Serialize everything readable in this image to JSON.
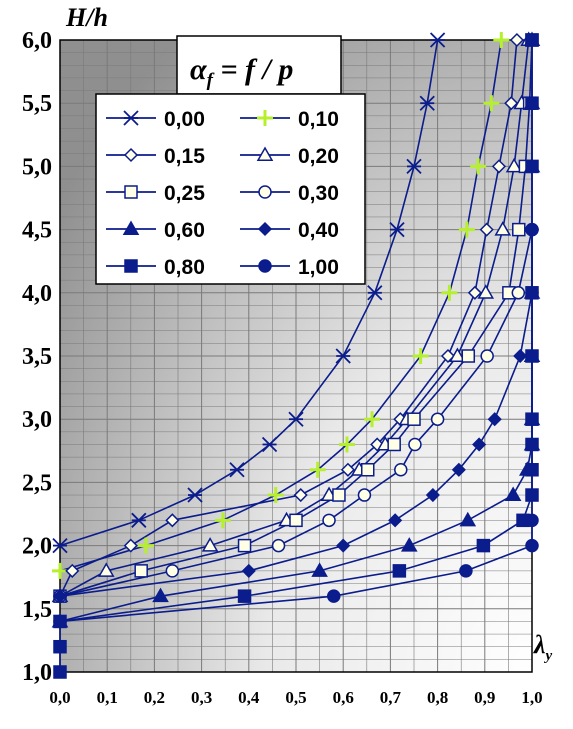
{
  "chart_data": {
    "type": "line",
    "title": "",
    "ylabel": "H/h",
    "xlabel": "λy",
    "xlim": [
      0,
      1
    ],
    "ylim": [
      1,
      6
    ],
    "x_ticks": [
      "0,0",
      "0,1",
      "0,2",
      "0,3",
      "0,4",
      "0,5",
      "0,6",
      "0,7",
      "0,8",
      "0,9",
      "1,0"
    ],
    "y_ticks": [
      "1,0",
      "1,5",
      "2,0",
      "2,5",
      "3,0",
      "3,5",
      "4,0",
      "4,5",
      "5,0",
      "5,5",
      "6,0"
    ],
    "grid": true,
    "legend": {
      "placement": "top-left",
      "title": "αf = f / p"
    },
    "series": [
      {
        "name": "0,00",
        "marker": "star",
        "points": [
          [
            0,
            2.0
          ],
          [
            0.167,
            2.2
          ],
          [
            0.286,
            2.4
          ],
          [
            0.375,
            2.6
          ],
          [
            0.444,
            2.8
          ],
          [
            0.5,
            3.0
          ],
          [
            0.6,
            3.5
          ],
          [
            0.667,
            4.0
          ],
          [
            0.714,
            4.5
          ],
          [
            0.75,
            5.0
          ],
          [
            0.778,
            5.5
          ],
          [
            0.8,
            6.0
          ]
        ]
      },
      {
        "name": "0,10",
        "marker": "plus",
        "points": [
          [
            0,
            1.8
          ],
          [
            0.182,
            2.0
          ],
          [
            0.345,
            2.2
          ],
          [
            0.457,
            2.4
          ],
          [
            0.546,
            2.6
          ],
          [
            0.608,
            2.8
          ],
          [
            0.661,
            3.0
          ],
          [
            0.764,
            3.5
          ],
          [
            0.825,
            4.0
          ],
          [
            0.862,
            4.5
          ],
          [
            0.886,
            5.0
          ],
          [
            0.914,
            5.5
          ],
          [
            0.935,
            6.0
          ]
        ]
      },
      {
        "name": "0,15",
        "marker": "diamond",
        "points": [
          [
            0,
            1.6
          ],
          [
            0.026,
            1.8
          ],
          [
            0.15,
            2.0
          ],
          [
            0.238,
            2.2
          ],
          [
            0.51,
            2.4
          ],
          [
            0.61,
            2.6
          ],
          [
            0.672,
            2.8
          ],
          [
            0.721,
            3.0
          ],
          [
            0.822,
            3.5
          ],
          [
            0.879,
            4.0
          ],
          [
            0.904,
            4.5
          ],
          [
            0.93,
            5.0
          ],
          [
            0.956,
            5.5
          ],
          [
            0.968,
            6.0
          ]
        ]
      },
      {
        "name": "0,20",
        "marker": "triangle-open",
        "points": [
          [
            0,
            1.6
          ],
          [
            0.098,
            1.8
          ],
          [
            0.318,
            2.0
          ],
          [
            0.48,
            2.2
          ],
          [
            0.57,
            2.4
          ],
          [
            0.634,
            2.6
          ],
          [
            0.689,
            2.8
          ],
          [
            0.735,
            3.0
          ],
          [
            0.842,
            3.5
          ],
          [
            0.902,
            4.0
          ],
          [
            0.938,
            4.5
          ],
          [
            0.962,
            5.0
          ],
          [
            0.978,
            5.5
          ],
          [
            0.993,
            6.0
          ]
        ]
      },
      {
        "name": "0,25",
        "marker": "square-open",
        "points": [
          [
            0,
            1.6
          ],
          [
            0.172,
            1.8
          ],
          [
            0.391,
            2.0
          ],
          [
            0.5,
            2.2
          ],
          [
            0.591,
            2.4
          ],
          [
            0.652,
            2.6
          ],
          [
            0.708,
            2.8
          ],
          [
            0.75,
            3.0
          ],
          [
            0.865,
            3.5
          ],
          [
            0.951,
            4.0
          ],
          [
            0.972,
            4.5
          ],
          [
            0.986,
            5.0
          ],
          [
            0.995,
            5.5
          ],
          [
            1.0,
            6.0
          ]
        ]
      },
      {
        "name": "0,30",
        "marker": "circle-open",
        "points": [
          [
            0,
            1.6
          ],
          [
            0.238,
            1.8
          ],
          [
            0.463,
            2.0
          ],
          [
            0.57,
            2.2
          ],
          [
            0.645,
            2.4
          ],
          [
            0.722,
            2.6
          ],
          [
            0.752,
            2.8
          ],
          [
            0.8,
            3.0
          ],
          [
            0.905,
            3.5
          ],
          [
            0.971,
            4.0
          ],
          [
            1.0,
            4.5
          ]
        ]
      },
      {
        "name": "0,40",
        "marker": "diamond-filled",
        "points": [
          [
            0,
            1.6
          ],
          [
            0.4,
            1.8
          ],
          [
            0.6,
            2.0
          ],
          [
            0.71,
            2.2
          ],
          [
            0.79,
            2.4
          ],
          [
            0.845,
            2.6
          ],
          [
            0.888,
            2.8
          ],
          [
            0.921,
            3.0
          ],
          [
            0.975,
            3.5
          ],
          [
            1.0,
            4.0
          ],
          [
            1.0,
            4.5
          ]
        ]
      },
      {
        "name": "0,60",
        "marker": "triangle-filled",
        "points": [
          [
            0,
            1.4
          ],
          [
            0.213,
            1.6
          ],
          [
            0.55,
            1.8
          ],
          [
            0.74,
            2.0
          ],
          [
            0.864,
            2.2
          ],
          [
            0.96,
            2.4
          ],
          [
            0.99,
            2.6
          ],
          [
            1.0,
            2.8
          ],
          [
            1.0,
            3.0
          ],
          [
            1.0,
            3.5
          ],
          [
            1.0,
            4.0
          ],
          [
            1.0,
            5.0
          ],
          [
            1.0,
            5.5
          ],
          [
            1.0,
            6.0
          ]
        ]
      },
      {
        "name": "0,80",
        "marker": "square-filled",
        "points": [
          [
            0,
            1.0
          ],
          [
            0,
            1.2
          ],
          [
            0,
            1.4
          ],
          [
            0.391,
            1.6
          ],
          [
            0.719,
            1.8
          ],
          [
            0.897,
            2.0
          ],
          [
            0.981,
            2.2
          ],
          [
            1.0,
            2.4
          ],
          [
            1.0,
            2.6
          ],
          [
            1.0,
            2.8
          ],
          [
            1.0,
            3.0
          ],
          [
            1.0,
            3.5
          ],
          [
            1.0,
            4.0
          ],
          [
            1.0,
            5.0
          ],
          [
            1.0,
            5.5
          ],
          [
            1.0,
            6.0
          ]
        ]
      },
      {
        "name": "1,00",
        "marker": "circle-filled",
        "points": [
          [
            0,
            1.4
          ],
          [
            0.58,
            1.6
          ],
          [
            0.86,
            1.8
          ],
          [
            1.0,
            2.0
          ],
          [
            1.0,
            2.2
          ],
          [
            1.0,
            4.5
          ]
        ]
      }
    ]
  },
  "colors": {
    "line": "#0b1c8c",
    "marker_edge": "#0b1c8c",
    "series_0_10_fill": "#b6f02c",
    "marker_open_fill": "#ffffe6",
    "bg_dark": "#9a9a9a",
    "bg_light": "#ffffff",
    "grid": "#7a7a7a"
  }
}
